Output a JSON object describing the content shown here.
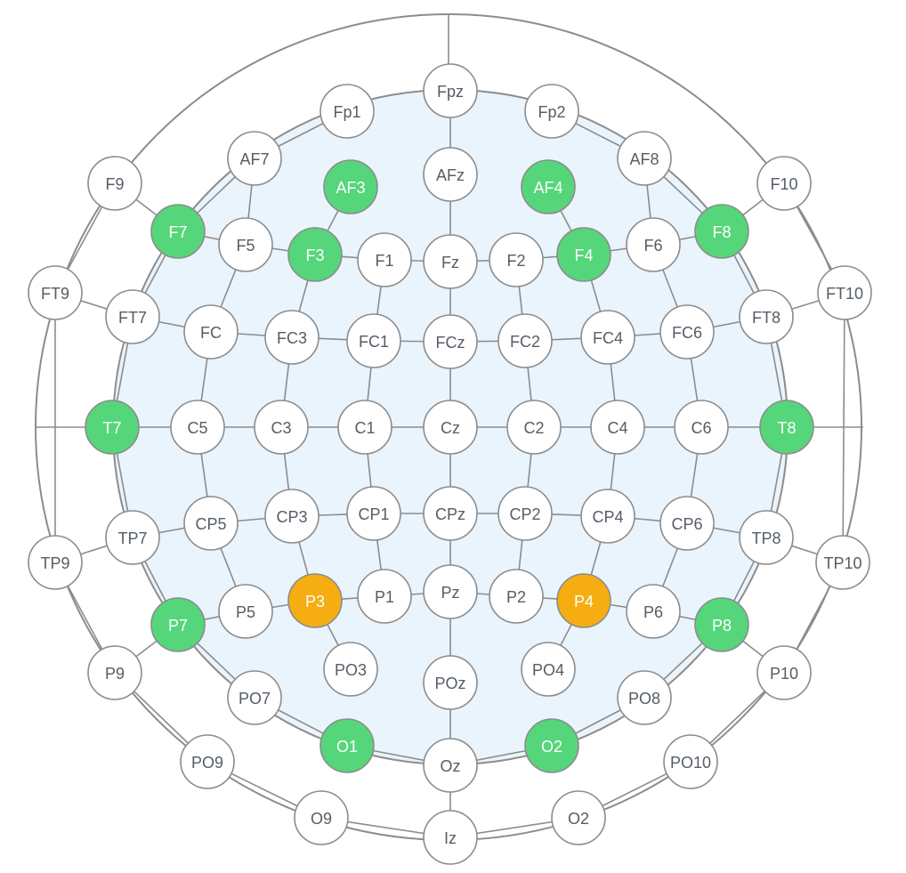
{
  "colors": {
    "default_fill": "#ffffff",
    "default_text": "#555d66",
    "green": "#55d67a",
    "orange": "#f5ad12",
    "highlight_text": "#ffffff",
    "line": "#8c8c8c",
    "inner_fill": "#eaf4fc"
  },
  "electrodes": [
    {
      "label": "Fpz",
      "state": "default"
    },
    {
      "label": "Fp1",
      "state": "default"
    },
    {
      "label": "Fp2",
      "state": "default"
    },
    {
      "label": "AF7",
      "state": "default"
    },
    {
      "label": "AF3",
      "state": "green"
    },
    {
      "label": "AFz",
      "state": "default"
    },
    {
      "label": "AF4",
      "state": "green"
    },
    {
      "label": "AF8",
      "state": "default"
    },
    {
      "label": "F9",
      "state": "default"
    },
    {
      "label": "F10",
      "state": "default"
    },
    {
      "label": "F7",
      "state": "green"
    },
    {
      "label": "F5",
      "state": "default"
    },
    {
      "label": "F3",
      "state": "green"
    },
    {
      "label": "F1",
      "state": "default"
    },
    {
      "label": "Fz",
      "state": "default"
    },
    {
      "label": "F2",
      "state": "default"
    },
    {
      "label": "F4",
      "state": "green"
    },
    {
      "label": "F6",
      "state": "default"
    },
    {
      "label": "F8",
      "state": "green"
    },
    {
      "label": "FT9",
      "state": "default"
    },
    {
      "label": "FT10",
      "state": "default"
    },
    {
      "label": "FT7",
      "state": "default"
    },
    {
      "label": "FC",
      "state": "default"
    },
    {
      "label": "FC3",
      "state": "default"
    },
    {
      "label": "FC1",
      "state": "default"
    },
    {
      "label": "FCz",
      "state": "default"
    },
    {
      "label": "FC2",
      "state": "default"
    },
    {
      "label": "FC4",
      "state": "default"
    },
    {
      "label": "FC6",
      "state": "default"
    },
    {
      "label": "FT8",
      "state": "default"
    },
    {
      "label": "T7",
      "state": "green"
    },
    {
      "label": "C5",
      "state": "default"
    },
    {
      "label": "C3",
      "state": "default"
    },
    {
      "label": "C1",
      "state": "default"
    },
    {
      "label": "Cz",
      "state": "default"
    },
    {
      "label": "C2",
      "state": "default"
    },
    {
      "label": "C4",
      "state": "default"
    },
    {
      "label": "C6",
      "state": "default"
    },
    {
      "label": "T8",
      "state": "green"
    },
    {
      "label": "TP9",
      "state": "default"
    },
    {
      "label": "TP7",
      "state": "default"
    },
    {
      "label": "CP5",
      "state": "default"
    },
    {
      "label": "CP3",
      "state": "default"
    },
    {
      "label": "CP1",
      "state": "default"
    },
    {
      "label": "CPz",
      "state": "default"
    },
    {
      "label": "CP2",
      "state": "default"
    },
    {
      "label": "CP4",
      "state": "default"
    },
    {
      "label": "CP6",
      "state": "default"
    },
    {
      "label": "TP8",
      "state": "default"
    },
    {
      "label": "TP10",
      "state": "default"
    },
    {
      "label": "P7",
      "state": "green"
    },
    {
      "label": "P5",
      "state": "default"
    },
    {
      "label": "P3",
      "state": "orange"
    },
    {
      "label": "P1",
      "state": "default"
    },
    {
      "label": "Pz",
      "state": "default"
    },
    {
      "label": "P2",
      "state": "default"
    },
    {
      "label": "P4",
      "state": "orange"
    },
    {
      "label": "P6",
      "state": "default"
    },
    {
      "label": "P8",
      "state": "green"
    },
    {
      "label": "P9",
      "state": "default"
    },
    {
      "label": "P10",
      "state": "default"
    },
    {
      "label": "PO7",
      "state": "default"
    },
    {
      "label": "PO3",
      "state": "default"
    },
    {
      "label": "POz",
      "state": "default"
    },
    {
      "label": "PO4",
      "state": "default"
    },
    {
      "label": "PO8",
      "state": "default"
    },
    {
      "label": "O1",
      "state": "green"
    },
    {
      "label": "Oz",
      "state": "default"
    },
    {
      "label": "O2",
      "state": "green"
    },
    {
      "label": "PO9",
      "state": "default"
    },
    {
      "label": "PO10",
      "state": "default"
    },
    {
      "label": "O9",
      "state": "default"
    },
    {
      "label": "Iz",
      "state": "default"
    },
    {
      "label": "O2",
      "state": "default"
    }
  ]
}
